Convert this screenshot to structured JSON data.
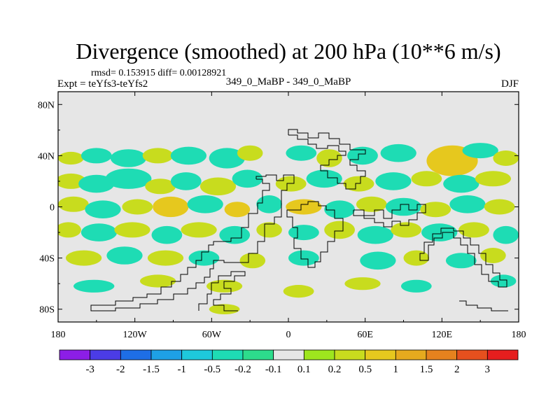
{
  "chart_data": {
    "type": "heatmap",
    "title": "Divergence (smoothed) at 200 hPa (10**6 m/s)",
    "stats": "rmsd= 0.153915  diff= 0.00128921",
    "left_label": "Expt = teYfs3-teYfs2",
    "center_label": "349_0_MaBP - 349_0_MaBP",
    "season": "DJF",
    "xlim": [
      -180,
      180
    ],
    "ylim": [
      -90,
      90
    ],
    "x_ticks": [
      {
        "value": -180,
        "label": "180"
      },
      {
        "value": -120,
        "label": "120W"
      },
      {
        "value": -60,
        "label": "60W"
      },
      {
        "value": 0,
        "label": "0"
      },
      {
        "value": 60,
        "label": "60E"
      },
      {
        "value": 120,
        "label": "120E"
      },
      {
        "value": 180,
        "label": "180"
      }
    ],
    "y_ticks": [
      {
        "value": 80,
        "label": "80N"
      },
      {
        "value": 40,
        "label": "40N"
      },
      {
        "value": 0,
        "label": "0"
      },
      {
        "value": -40,
        "label": "40S"
      },
      {
        "value": -80,
        "label": "80S"
      }
    ],
    "colorbar": {
      "colors": [
        "#8c1ee6",
        "#4b3ce6",
        "#1e6ee6",
        "#1ea0e6",
        "#1ec8dc",
        "#1edcb4",
        "#2ddc8c",
        "#e6e6e6",
        "#9ee61e",
        "#c8dc1e",
        "#e6c81e",
        "#e6aa1e",
        "#e6821e",
        "#e6501e",
        "#e61e1e"
      ],
      "labels": [
        "-3",
        "-2",
        "-1.5",
        "-1",
        "-0.5",
        "-0.2",
        "-0.1",
        "0.1",
        "0.2",
        "0.5",
        "1",
        "1.5",
        "2",
        "3"
      ]
    },
    "anomalies": [
      {
        "lon": -170,
        "lat": 38,
        "rx": 10,
        "ry": 5,
        "v": 0.3
      },
      {
        "lon": -150,
        "lat": 40,
        "rx": 12,
        "ry": 6,
        "v": -0.3
      },
      {
        "lon": -125,
        "lat": 38,
        "rx": 14,
        "ry": 7,
        "v": -0.35
      },
      {
        "lon": -102,
        "lat": 40,
        "rx": 12,
        "ry": 6,
        "v": 0.25
      },
      {
        "lon": -78,
        "lat": 40,
        "rx": 14,
        "ry": 7,
        "v": -0.3
      },
      {
        "lon": -48,
        "lat": 38,
        "rx": 14,
        "ry": 8,
        "v": -0.35
      },
      {
        "lon": -30,
        "lat": 42,
        "rx": 10,
        "ry": 6,
        "v": 0.2
      },
      {
        "lon": 10,
        "lat": 42,
        "rx": 12,
        "ry": 6,
        "v": -0.3
      },
      {
        "lon": 32,
        "lat": 38,
        "rx": 10,
        "ry": 7,
        "v": 0.35
      },
      {
        "lon": 58,
        "lat": 40,
        "rx": 12,
        "ry": 7,
        "v": -0.3
      },
      {
        "lon": 86,
        "lat": 42,
        "rx": 14,
        "ry": 7,
        "v": -0.35
      },
      {
        "lon": 128,
        "lat": 36,
        "rx": 20,
        "ry": 12,
        "v": 0.55
      },
      {
        "lon": 150,
        "lat": 44,
        "rx": 14,
        "ry": 6,
        "v": -0.3
      },
      {
        "lon": 170,
        "lat": 38,
        "rx": 10,
        "ry": 6,
        "v": 0.25
      },
      {
        "lon": -170,
        "lat": 20,
        "rx": 12,
        "ry": 6,
        "v": 0.3
      },
      {
        "lon": -150,
        "lat": 18,
        "rx": 14,
        "ry": 7,
        "v": -0.3
      },
      {
        "lon": -125,
        "lat": 22,
        "rx": 18,
        "ry": 8,
        "v": -0.45
      },
      {
        "lon": -100,
        "lat": 16,
        "rx": 12,
        "ry": 6,
        "v": 0.3
      },
      {
        "lon": -80,
        "lat": 20,
        "rx": 12,
        "ry": 7,
        "v": -0.35
      },
      {
        "lon": -55,
        "lat": 16,
        "rx": 14,
        "ry": 7,
        "v": 0.35
      },
      {
        "lon": -32,
        "lat": 22,
        "rx": 12,
        "ry": 7,
        "v": -0.3
      },
      {
        "lon": 2,
        "lat": 18,
        "rx": 12,
        "ry": 6,
        "v": 0.3
      },
      {
        "lon": 28,
        "lat": 22,
        "rx": 14,
        "ry": 7,
        "v": -0.35
      },
      {
        "lon": 55,
        "lat": 18,
        "rx": 12,
        "ry": 6,
        "v": 0.35
      },
      {
        "lon": 82,
        "lat": 20,
        "rx": 14,
        "ry": 7,
        "v": -0.3
      },
      {
        "lon": 108,
        "lat": 22,
        "rx": 12,
        "ry": 6,
        "v": 0.3
      },
      {
        "lon": 135,
        "lat": 18,
        "rx": 14,
        "ry": 7,
        "v": -0.35
      },
      {
        "lon": 160,
        "lat": 22,
        "rx": 14,
        "ry": 6,
        "v": 0.35
      },
      {
        "lon": -168,
        "lat": 2,
        "rx": 12,
        "ry": 6,
        "v": 0.45
      },
      {
        "lon": -145,
        "lat": -2,
        "rx": 14,
        "ry": 7,
        "v": -0.4
      },
      {
        "lon": -118,
        "lat": 0,
        "rx": 12,
        "ry": 6,
        "v": 0.4
      },
      {
        "lon": -92,
        "lat": 0,
        "rx": 14,
        "ry": 8,
        "v": 0.9
      },
      {
        "lon": -65,
        "lat": 2,
        "rx": 14,
        "ry": 7,
        "v": -0.45
      },
      {
        "lon": -40,
        "lat": -2,
        "rx": 10,
        "ry": 6,
        "v": 0.5
      },
      {
        "lon": -15,
        "lat": 2,
        "rx": 10,
        "ry": 7,
        "v": -0.4
      },
      {
        "lon": 12,
        "lat": 0,
        "rx": 14,
        "ry": 6,
        "v": 0.55
      },
      {
        "lon": 40,
        "lat": -2,
        "rx": 12,
        "ry": 7,
        "v": -0.4
      },
      {
        "lon": 65,
        "lat": 2,
        "rx": 12,
        "ry": 6,
        "v": 0.45
      },
      {
        "lon": 90,
        "lat": 0,
        "rx": 14,
        "ry": 7,
        "v": -0.35
      },
      {
        "lon": 115,
        "lat": -2,
        "rx": 12,
        "ry": 6,
        "v": 0.4
      },
      {
        "lon": 140,
        "lat": 2,
        "rx": 14,
        "ry": 7,
        "v": -0.4
      },
      {
        "lon": 165,
        "lat": 0,
        "rx": 12,
        "ry": 6,
        "v": 0.45
      },
      {
        "lon": -172,
        "lat": -18,
        "rx": 10,
        "ry": 6,
        "v": 0.35
      },
      {
        "lon": -148,
        "lat": -20,
        "rx": 14,
        "ry": 7,
        "v": -0.45
      },
      {
        "lon": -122,
        "lat": -18,
        "rx": 14,
        "ry": 6,
        "v": 0.35
      },
      {
        "lon": -95,
        "lat": -22,
        "rx": 12,
        "ry": 7,
        "v": -0.3
      },
      {
        "lon": -70,
        "lat": -18,
        "rx": 14,
        "ry": 6,
        "v": 0.4
      },
      {
        "lon": -42,
        "lat": -22,
        "rx": 12,
        "ry": 7,
        "v": -0.35
      },
      {
        "lon": -15,
        "lat": -18,
        "rx": 10,
        "ry": 6,
        "v": 0.45
      },
      {
        "lon": 12,
        "lat": -20,
        "rx": 12,
        "ry": 6,
        "v": -0.3
      },
      {
        "lon": 40,
        "lat": -18,
        "rx": 12,
        "ry": 7,
        "v": 0.35
      },
      {
        "lon": 68,
        "lat": -22,
        "rx": 14,
        "ry": 7,
        "v": -0.4
      },
      {
        "lon": 92,
        "lat": -18,
        "rx": 12,
        "ry": 6,
        "v": 0.35
      },
      {
        "lon": 118,
        "lat": -20,
        "rx": 14,
        "ry": 7,
        "v": -0.35
      },
      {
        "lon": 145,
        "lat": -18,
        "rx": 12,
        "ry": 6,
        "v": 0.4
      },
      {
        "lon": 170,
        "lat": -22,
        "rx": 10,
        "ry": 7,
        "v": -0.3
      },
      {
        "lon": -160,
        "lat": -40,
        "rx": 14,
        "ry": 6,
        "v": 0.3
      },
      {
        "lon": -128,
        "lat": -38,
        "rx": 14,
        "ry": 7,
        "v": -0.35
      },
      {
        "lon": -96,
        "lat": -40,
        "rx": 14,
        "ry": 6,
        "v": 0.3
      },
      {
        "lon": -66,
        "lat": -40,
        "rx": 12,
        "ry": 6,
        "v": -0.3
      },
      {
        "lon": -28,
        "lat": -42,
        "rx": 10,
        "ry": 6,
        "v": 0.35
      },
      {
        "lon": 12,
        "lat": -40,
        "rx": 12,
        "ry": 6,
        "v": -0.3
      },
      {
        "lon": 70,
        "lat": -42,
        "rx": 14,
        "ry": 7,
        "v": -0.4
      },
      {
        "lon": 100,
        "lat": -40,
        "rx": 10,
        "ry": 6,
        "v": 0.3
      },
      {
        "lon": 135,
        "lat": -42,
        "rx": 12,
        "ry": 6,
        "v": -0.3
      },
      {
        "lon": 160,
        "lat": -38,
        "rx": 10,
        "ry": 6,
        "v": 0.35
      },
      {
        "lon": -152,
        "lat": -62,
        "rx": 16,
        "ry": 5,
        "v": -0.3
      },
      {
        "lon": -102,
        "lat": -58,
        "rx": 14,
        "ry": 5,
        "v": 0.3
      },
      {
        "lon": -50,
        "lat": -62,
        "rx": 14,
        "ry": 5,
        "v": 0.35
      },
      {
        "lon": 8,
        "lat": -66,
        "rx": 12,
        "ry": 5,
        "v": 0.3
      },
      {
        "lon": 58,
        "lat": -60,
        "rx": 14,
        "ry": 5,
        "v": 0.3
      },
      {
        "lon": 100,
        "lat": -62,
        "rx": 12,
        "ry": 5,
        "v": -0.3
      },
      {
        "lon": 168,
        "lat": -58,
        "rx": 10,
        "ry": 5,
        "v": -0.3
      },
      {
        "lon": -50,
        "lat": -80,
        "rx": 12,
        "ry": 4,
        "v": 0.3
      }
    ]
  }
}
